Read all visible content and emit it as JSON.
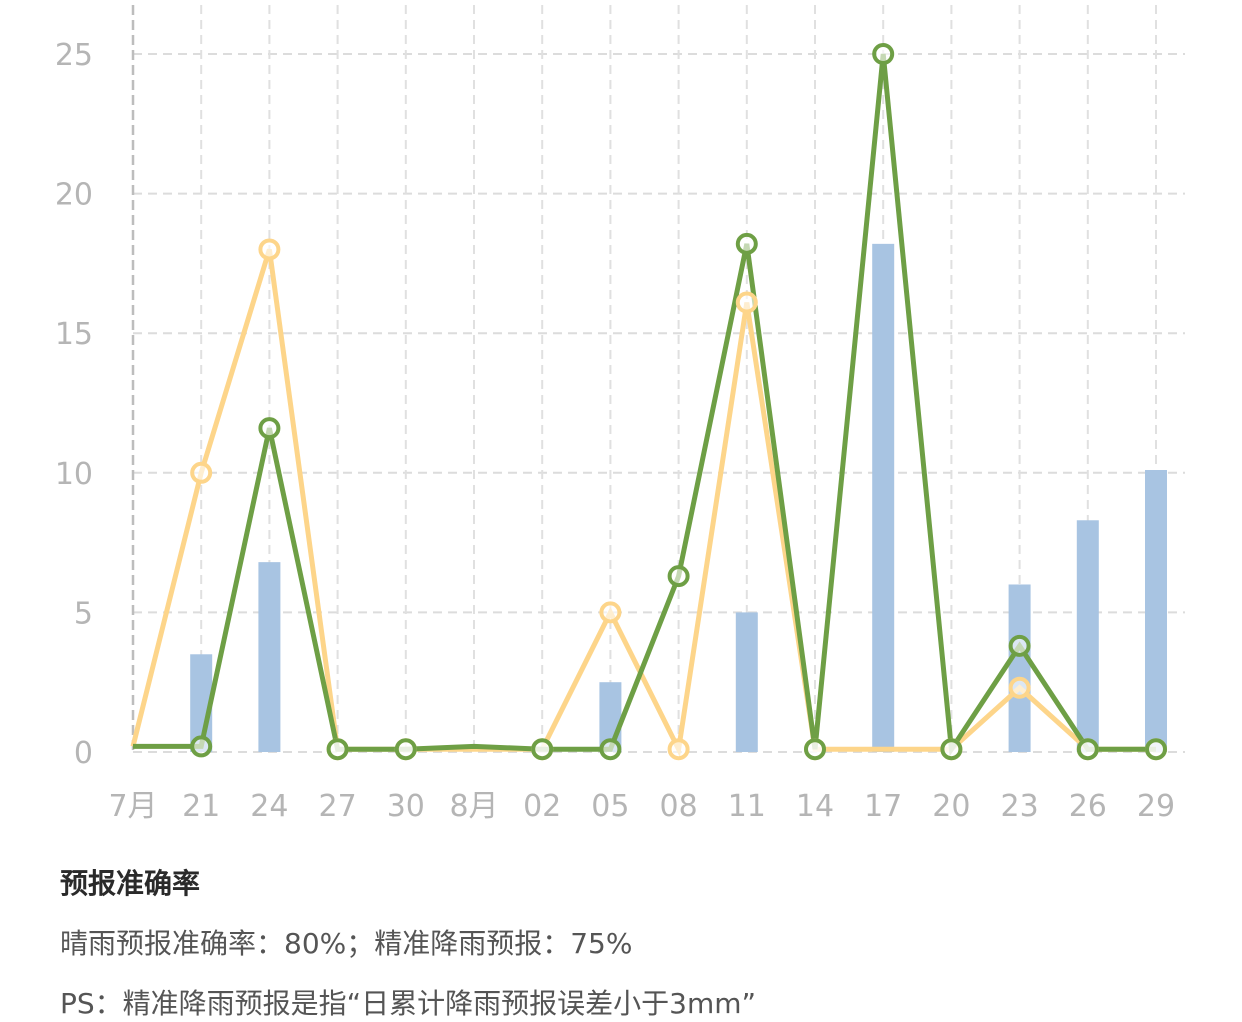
{
  "chart_data": {
    "type": "bar",
    "x_tick_labels": [
      "7月",
      "21",
      "24",
      "27",
      "30",
      "8月",
      "02",
      "05",
      "08",
      "11",
      "14",
      "17",
      "20",
      "23",
      "26",
      "29"
    ],
    "y_ticks": [
      0,
      5,
      10,
      15,
      20,
      25
    ],
    "ylim": [
      0,
      26.5
    ],
    "grid": true,
    "colors": {
      "bars": "#a8c4e2",
      "orange_line": "#fdd58a",
      "green_line": "#6e9f45"
    },
    "bars": [
      0,
      3.5,
      6.8,
      0,
      0,
      0,
      0,
      2.5,
      0,
      5.0,
      0,
      18.2,
      0,
      6.0,
      8.3,
      10.1
    ],
    "orange_series": [
      0.2,
      10.0,
      18.0,
      0.1,
      0.1,
      0.1,
      0.1,
      5.0,
      0.1,
      16.1,
      0.1,
      0.1,
      0.1,
      2.3,
      0.1,
      0.1
    ],
    "green_series": [
      0.2,
      0.2,
      11.6,
      0.1,
      0.1,
      0.2,
      0.1,
      0.1,
      6.3,
      18.2,
      0.1,
      25.0,
      0.1,
      3.8,
      0.1,
      0.1
    ],
    "orange_markers": [
      false,
      true,
      true,
      true,
      true,
      false,
      true,
      true,
      true,
      true,
      true,
      false,
      true,
      true,
      true,
      true
    ],
    "green_markers": [
      false,
      true,
      true,
      true,
      true,
      false,
      true,
      true,
      true,
      true,
      true,
      true,
      true,
      true,
      true,
      true
    ]
  },
  "info": {
    "title": "预报准确率",
    "line1": "晴雨预报准确率：80%；精准降雨预报：75%",
    "line2": "PS：精准降雨预报是指“日累计降雨预报误差小于3mm”"
  }
}
